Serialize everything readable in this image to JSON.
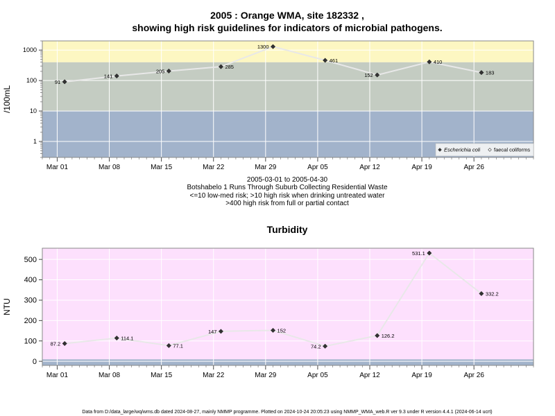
{
  "chart_data": [
    {
      "type": "line",
      "title": "2005 : Orange WMA, site 182332 ,",
      "subtitle": "showing high risk guidelines for indicators of microbial pathogens.",
      "ylabel": "/100mL",
      "y_scale": "log10",
      "ylim": [
        0.3,
        2000
      ],
      "y_ticks": [
        1,
        10,
        100,
        1000
      ],
      "y_tick_labels": [
        "1",
        "10",
        "100",
        "1000"
      ],
      "xlim": [
        "2005-02-27",
        "2005-05-04"
      ],
      "x_ticks": [
        "2005-03-01",
        "2005-03-08",
        "2005-03-15",
        "2005-03-22",
        "2005-03-29",
        "2005-04-05",
        "2005-04-12",
        "2005-04-19",
        "2005-04-26"
      ],
      "x_tick_labels": [
        "Mar 01",
        "Mar 08",
        "Mar 15",
        "Mar 22",
        "Mar 29",
        "Apr 05",
        "Apr 12",
        "Apr 19",
        "Apr 26"
      ],
      "grid": true,
      "bands": [
        {
          "from": 0.3,
          "to": 10,
          "color": "#a2b3cb"
        },
        {
          "from": 10,
          "to": 400,
          "color": "#c4ccc2"
        },
        {
          "from": 400,
          "to": 2000,
          "color": "#fdf7c2"
        }
      ],
      "series": [
        {
          "name": "Escherichia coli",
          "color": "#333333",
          "x": [
            "2005-03-02",
            "2005-03-09",
            "2005-03-16",
            "2005-03-23",
            "2005-03-30",
            "2005-04-06",
            "2005-04-13",
            "2005-04-20",
            "2005-04-27"
          ],
          "y": [
            91,
            141,
            205,
            285,
            1300,
            461,
            152,
            410,
            183
          ],
          "labels": [
            "91",
            "141",
            "205",
            "285",
            "1300",
            "461",
            "152",
            "410",
            "183"
          ]
        }
      ],
      "legend": {
        "placement": "bottom-right",
        "entries": [
          {
            "label": "Escherichia coli",
            "italic": true,
            "marker": "filled-diamond"
          },
          {
            "label": "faecal coliforms",
            "italic": false,
            "marker": "open-diamond"
          }
        ]
      },
      "caption_lines": [
        "2005-03-01 to 2005-04-30",
        "Botshabelo 1 Runs Through Suburb Collecting Residential Waste",
        "<=10 low-med risk; >10 high risk when drinking untreated water",
        ">400 high risk from full or partial contact"
      ]
    },
    {
      "type": "line",
      "title": "Turbidity",
      "ylabel": "NTU",
      "ylim": [
        -20,
        555
      ],
      "y_ticks": [
        0,
        100,
        200,
        300,
        400,
        500
      ],
      "y_tick_labels": [
        "0",
        "100",
        "200",
        "300",
        "400",
        "500"
      ],
      "xlim": [
        "2005-02-27",
        "2005-05-04"
      ],
      "x_ticks": [
        "2005-03-01",
        "2005-03-08",
        "2005-03-15",
        "2005-03-22",
        "2005-03-29",
        "2005-04-05",
        "2005-04-12",
        "2005-04-19",
        "2005-04-26"
      ],
      "x_tick_labels": [
        "Mar 01",
        "Mar 08",
        "Mar 15",
        "Mar 22",
        "Mar 29",
        "Apr 05",
        "Apr 12",
        "Apr 19",
        "Apr 26"
      ],
      "grid": true,
      "bands": [
        {
          "from": -20,
          "to": 10,
          "color": "#a2b3cb"
        },
        {
          "from": 10,
          "to": 555,
          "color": "#fde0fd"
        }
      ],
      "series": [
        {
          "name": "",
          "color": "#333333",
          "x": [
            "2005-03-02",
            "2005-03-09",
            "2005-03-16",
            "2005-03-23",
            "2005-03-30",
            "2005-04-06",
            "2005-04-13",
            "2005-04-20",
            "2005-04-27"
          ],
          "y": [
            87.2,
            114.1,
            77.1,
            147,
            152,
            74.2,
            126.2,
            531.1,
            332.2
          ],
          "labels": [
            "87.2",
            "114.1",
            "77.1",
            "147",
            "152",
            "74.2",
            "126.2",
            "531.1",
            "332.2"
          ]
        }
      ]
    }
  ],
  "footer": "Data from D:/data_large/wq/wms.db dated 2024-08-27, mainly NMMP programme. Plotted on 2024-10-24 20:05:23 using NMMP_WMA_web.R ver 9.3 under R version 4.4.1 (2024-06-14 ucrt)"
}
